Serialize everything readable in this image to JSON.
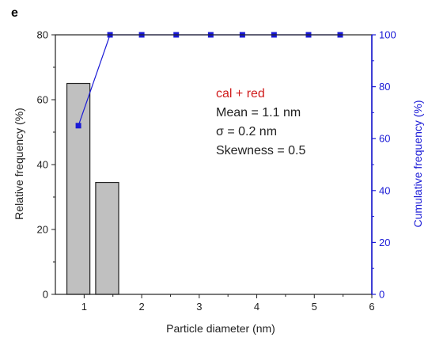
{
  "panel_label": "e",
  "chart_data": {
    "type": "bar",
    "title": "",
    "xlabel": "Particle diameter (nm)",
    "ylabel_left": "Relative frequency (%)",
    "ylabel_right": "Cumulative frequency (%)",
    "xlim": [
      0.5,
      6
    ],
    "ylim_left": [
      0,
      80
    ],
    "ylim_right": [
      0,
      100
    ],
    "x_ticks": [
      1,
      2,
      3,
      4,
      5,
      6
    ],
    "y_ticks_left": [
      0,
      20,
      40,
      60,
      80
    ],
    "y_ticks_right": [
      0,
      20,
      40,
      60,
      80,
      100
    ],
    "bars": [
      {
        "x_start": 0.7,
        "x_end": 1.1,
        "value": 65
      },
      {
        "x_start": 1.2,
        "x_end": 1.6,
        "value": 34.5
      }
    ],
    "cumulative_series": {
      "x": [
        0.9,
        1.45,
        2.0,
        2.6,
        3.2,
        3.75,
        4.3,
        4.9,
        5.45
      ],
      "y": [
        65,
        100,
        100,
        100,
        100,
        100,
        100,
        100,
        100
      ]
    },
    "annotation": {
      "sample": "cal + red",
      "mean": "Mean = 1.1 nm",
      "sigma": "σ = 0.2 nm",
      "skewness": "Skewness = 0.5"
    },
    "colors": {
      "bar_fill": "#c0c0c0",
      "bar_stroke": "#222222",
      "cumulative": "#1a1ad6",
      "sample_label": "#d01c1c",
      "axis": "#222222"
    },
    "grid": false,
    "legend": "none"
  }
}
